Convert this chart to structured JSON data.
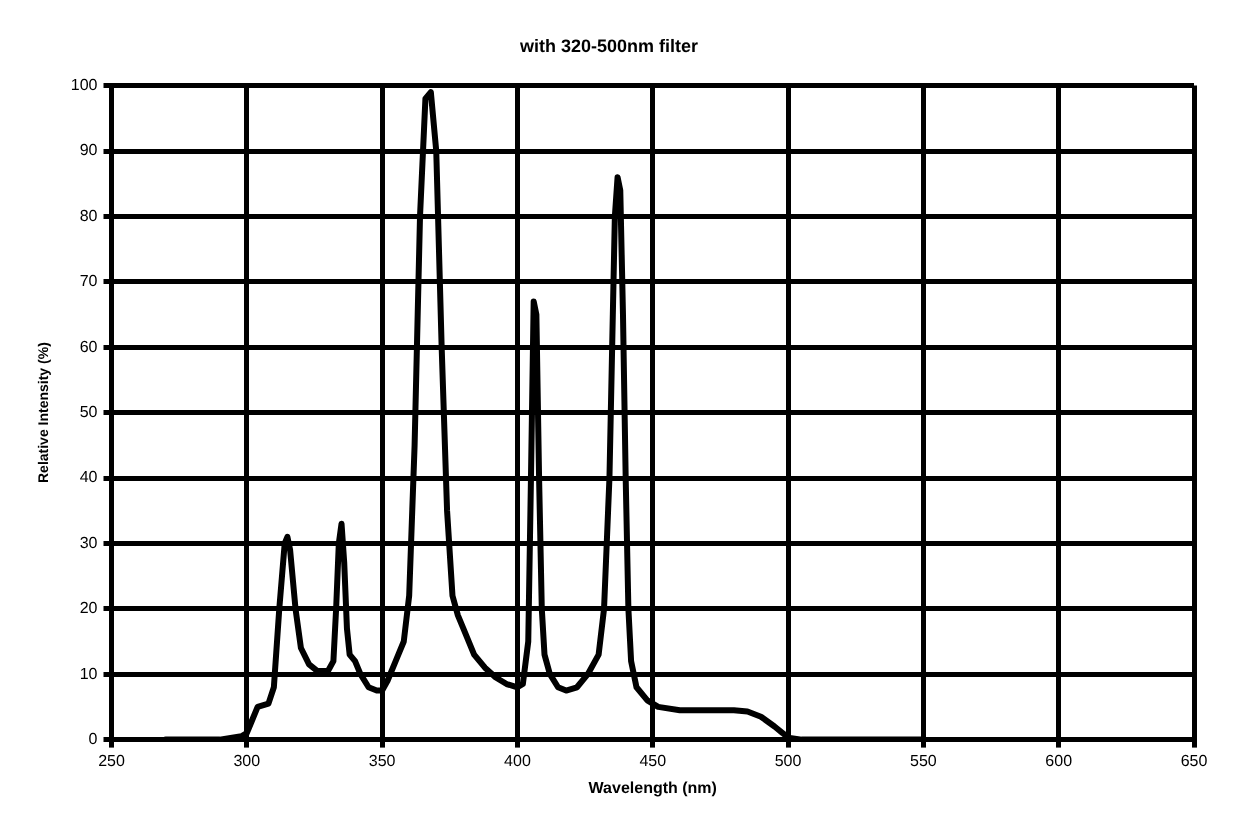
{
  "chart_data": {
    "type": "line",
    "title": "with 320-500nm filter",
    "xlabel": "Wavelength (nm)",
    "ylabel": "Relative Intensity (%)",
    "x": [
      270,
      290,
      298,
      300,
      302,
      304,
      308,
      310,
      312,
      314,
      315,
      316,
      318,
      320,
      323,
      326,
      330,
      332,
      333,
      334,
      335,
      336,
      337,
      338,
      340,
      342,
      345,
      348,
      350,
      352,
      355,
      358,
      360,
      362,
      364,
      366,
      368,
      370,
      372,
      374,
      376,
      378,
      380,
      384,
      388,
      392,
      396,
      400,
      402,
      404,
      405,
      406,
      407,
      408,
      409,
      410,
      412,
      415,
      418,
      422,
      426,
      430,
      432,
      434,
      435,
      436,
      437,
      438,
      439,
      440,
      441,
      442,
      444,
      448,
      452,
      460,
      470,
      480,
      485,
      490,
      495,
      498,
      500,
      505,
      550
    ],
    "series": [
      {
        "color": "#000000",
        "values": [
          0,
          0,
          0.5,
          1,
          3,
          5,
          5.5,
          8,
          20,
          30,
          31,
          29,
          20,
          14,
          11.5,
          10.5,
          10.5,
          12,
          20,
          30,
          33,
          27,
          17,
          13,
          12,
          10,
          8,
          7.5,
          7.5,
          9,
          12,
          15,
          22,
          45,
          80,
          98,
          99,
          90,
          60,
          35,
          22,
          19,
          17,
          13,
          11,
          9.5,
          8.5,
          8,
          8.5,
          15,
          40,
          67,
          65,
          40,
          20,
          13,
          10,
          8,
          7.5,
          8,
          10,
          13,
          20,
          40,
          60,
          80,
          86,
          84,
          65,
          40,
          20,
          12,
          8,
          6,
          5,
          4.5,
          4.5,
          4.5,
          4.3,
          3.5,
          2,
          1,
          0.3,
          0,
          0
        ]
      }
    ],
    "xlim": [
      250,
      650
    ],
    "xticks": [
      250,
      300,
      350,
      400,
      450,
      500,
      550,
      600,
      650
    ],
    "ylim": [
      0,
      100
    ],
    "yticks": [
      0,
      10,
      20,
      30,
      40,
      50,
      60,
      70,
      80,
      90,
      100
    ],
    "grid": true,
    "legend": false,
    "marker": "none",
    "line_style": "solid"
  }
}
